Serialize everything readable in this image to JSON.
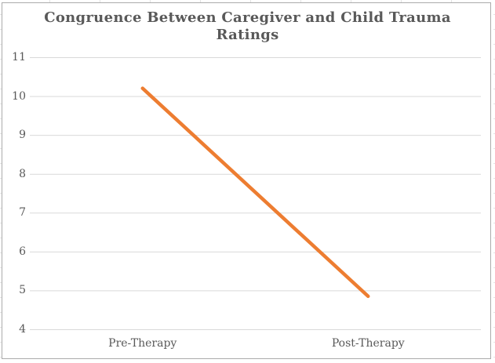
{
  "chart_data": {
    "type": "line",
    "title": "Congruence Between Caregiver and Child Trauma\nRatings",
    "categories": [
      "Pre-Therapy",
      "Post-Therapy"
    ],
    "series": [
      {
        "values": [
          10.2,
          4.85
        ],
        "color": "#ED7D31"
      }
    ],
    "ylim": [
      4,
      11
    ],
    "yticks": [
      4,
      5,
      6,
      7,
      8,
      9,
      10,
      11
    ],
    "ytick_step": 1,
    "xlabel": "",
    "ylabel": "",
    "grid": true,
    "legend": "none"
  },
  "colors": {
    "title": "#595959",
    "axis_labels": "#595959",
    "gridline": "#D9D9D9",
    "line": "#ED7D31",
    "chart_border": "#ABABAB",
    "background": "#FFFFFF"
  }
}
